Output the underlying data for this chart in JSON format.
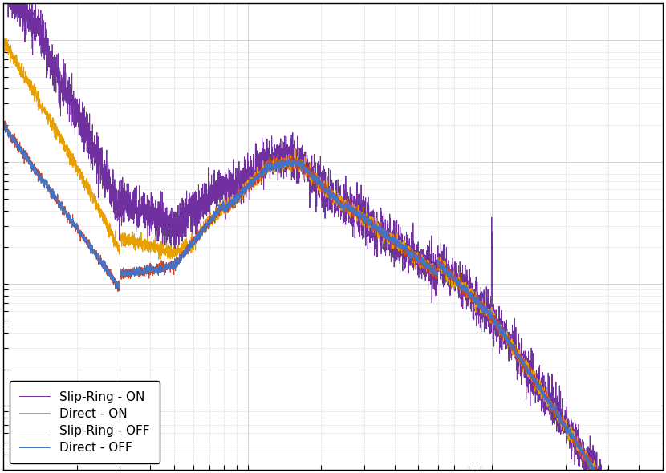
{
  "title": "",
  "xlabel": "",
  "ylabel": "",
  "xlim": [
    1,
    500
  ],
  "grid_color": "#cccccc",
  "legend_entries": [
    "Direct - OFF",
    "Slip-Ring - OFF",
    "Direct - ON",
    "Slip-Ring - ON"
  ],
  "colors": {
    "direct_off": "#4472c4",
    "slipring_off": "#d04020",
    "direct_on": "#e8a000",
    "slipring_on": "#7030a0"
  },
  "linewidth": 0.7,
  "background_color": "#ffffff",
  "figure_facecolor": "#ffffff",
  "axes_facecolor": "#ffffff"
}
